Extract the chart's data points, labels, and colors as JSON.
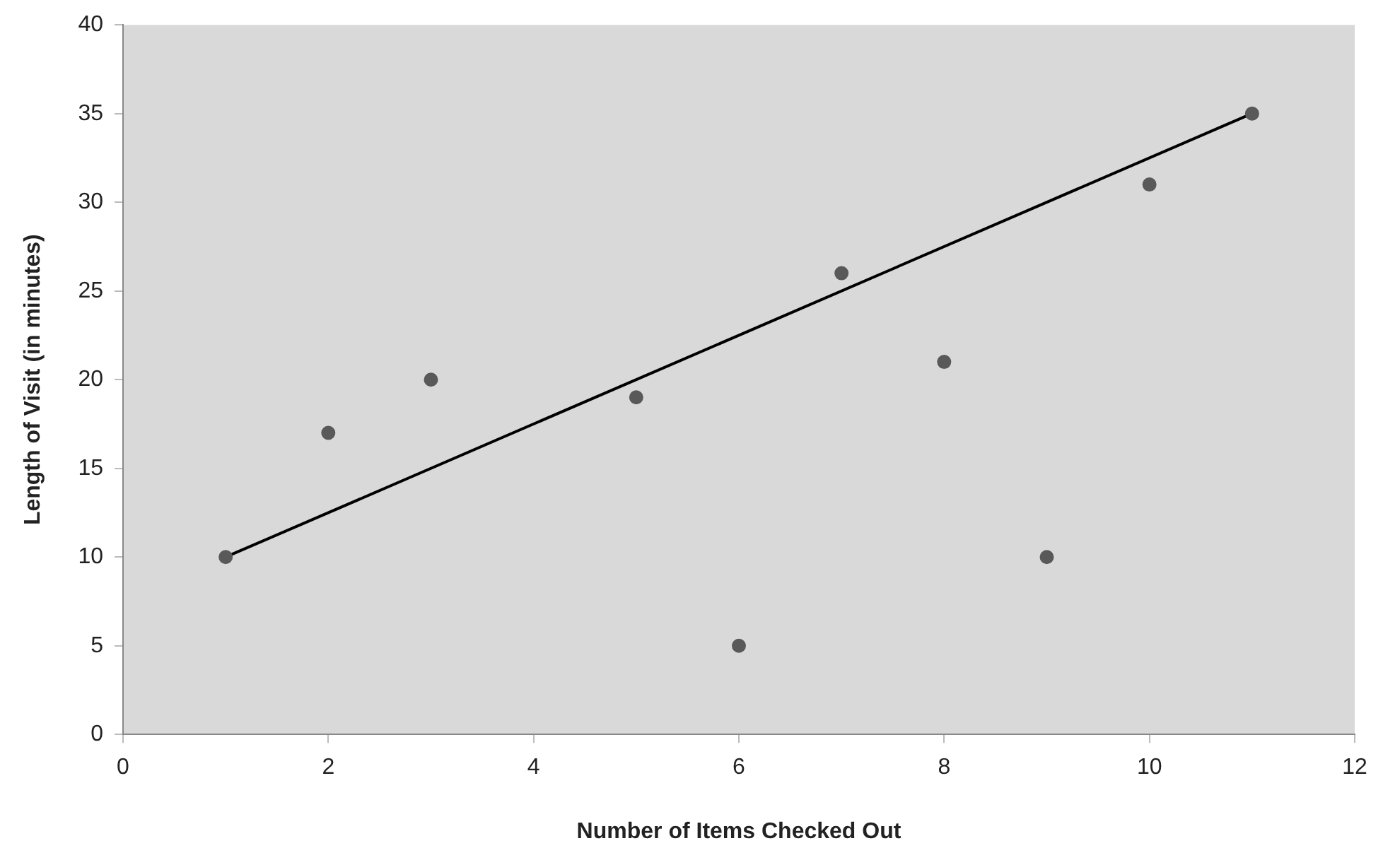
{
  "chart_data": {
    "type": "scatter",
    "xlabel": "Number of Items Checked Out",
    "ylabel": "Length of Visit (in minutes)",
    "x": [
      1,
      2,
      3,
      5,
      6,
      7,
      8,
      9,
      10,
      11
    ],
    "series": [
      {
        "color": "#595959",
        "marker": "circle",
        "values": [
          10,
          17,
          20,
          19,
          5,
          26,
          21,
          10,
          31,
          35
        ]
      },
      {
        "type": "line",
        "color": "#000000",
        "marker": "none",
        "x": [
          1,
          11
        ],
        "values": [
          10,
          35
        ]
      }
    ],
    "xlim": [
      0,
      12
    ],
    "xticks": [
      0,
      2,
      4,
      6,
      8,
      10,
      12
    ],
    "ylim": [
      0,
      40
    ],
    "yticks": [
      0,
      5,
      10,
      15,
      20,
      25,
      30,
      35,
      40
    ],
    "grid": false,
    "legend": false
  }
}
